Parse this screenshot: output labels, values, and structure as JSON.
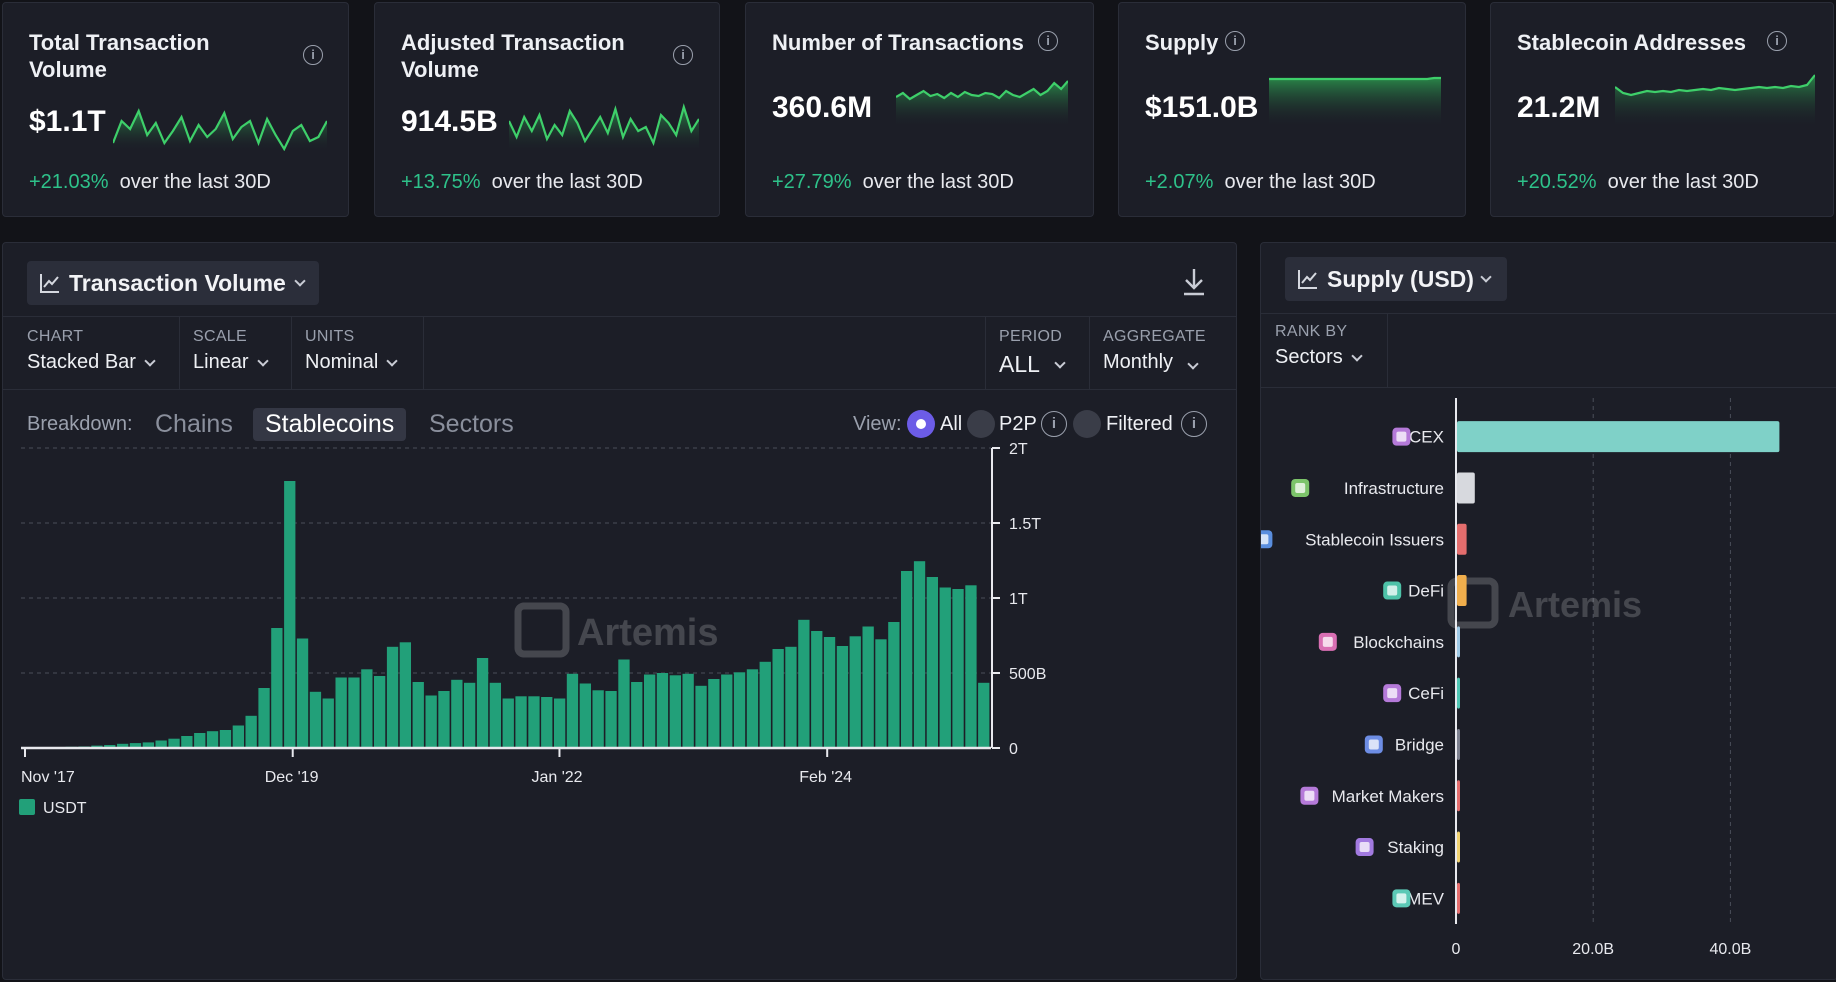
{
  "cards": [
    {
      "title_line1": "Total Transaction",
      "title_line2": "Volume",
      "value": "$1.1T",
      "change": "+21.03%",
      "change_suffix": "over the last 30D"
    },
    {
      "title_line1": "Adjusted Transaction",
      "title_line2": "Volume",
      "value": "914.5B",
      "change": "+13.75%",
      "change_suffix": "over the last 30D"
    },
    {
      "title_line1": "Number of Transactions",
      "title_line2": "",
      "value": "360.6M",
      "change": "+27.79%",
      "change_suffix": "over the last 30D"
    },
    {
      "title_line1": "Supply",
      "title_line2": "",
      "value": "$151.0B",
      "change": "+2.07%",
      "change_suffix": "over the last 30D"
    },
    {
      "title_line1": "Stablecoin Addresses",
      "title_line2": "",
      "value": "21.2M",
      "change": "+20.52%",
      "change_suffix": "over the last 30D"
    }
  ],
  "sparklines": [
    [
      52,
      30,
      38,
      20,
      44,
      32,
      52,
      40,
      26,
      50,
      34,
      46,
      38,
      22,
      48,
      36,
      30,
      52,
      28,
      44,
      58,
      40,
      34,
      50,
      46,
      30
    ],
    [
      34,
      50,
      30,
      44,
      28,
      52,
      38,
      48,
      24,
      36,
      54,
      42,
      30,
      46,
      22,
      50,
      32,
      44,
      40,
      56,
      28,
      36,
      48,
      20,
      44,
      32
    ],
    [
      26,
      22,
      28,
      24,
      20,
      25,
      23,
      27,
      22,
      26,
      21,
      24,
      25,
      22,
      23,
      27,
      20,
      24,
      26,
      22,
      18,
      24,
      20,
      12,
      18,
      10
    ],
    [
      12,
      12,
      12,
      12,
      12,
      12,
      12,
      12,
      12,
      12,
      12,
      12,
      12,
      12,
      12,
      12,
      12,
      12,
      12,
      12,
      12,
      12,
      12,
      12,
      11,
      11
    ],
    [
      16,
      22,
      24,
      22,
      20,
      21,
      20,
      21,
      19,
      20,
      19,
      18,
      19,
      17,
      18,
      19,
      18,
      17,
      16,
      17,
      16,
      17,
      15,
      16,
      14,
      4
    ]
  ],
  "main_panel": {
    "title": "Transaction Volume",
    "controls": {
      "chart_label": "CHART",
      "chart_value": "Stacked Bar",
      "scale_label": "SCALE",
      "scale_value": "Linear",
      "units_label": "UNITS",
      "units_value": "Nominal",
      "period_label": "PERIOD",
      "period_value": "ALL",
      "aggregate_label": "AGGREGATE",
      "aggregate_value": "Monthly"
    },
    "breakdown_label": "Breakdown:",
    "tabs": [
      "Chains",
      "Stablecoins",
      "Sectors"
    ],
    "active_tab": "Stablecoins",
    "view_label": "View:",
    "view_options": [
      "All",
      "P2P",
      "Filtered"
    ],
    "view_selected": "All",
    "watermark": "Artemis"
  },
  "side_panel": {
    "title": "Supply (USD)",
    "rank_by_label": "RANK BY",
    "rank_by_value": "Sectors",
    "watermark": "Artemis"
  },
  "chart_data": [
    {
      "type": "bar",
      "title": "Transaction Volume",
      "stacked": true,
      "x_tick_labels": [
        "Nov '17",
        "Dec '19",
        "Jan '22",
        "Feb '24"
      ],
      "y_tick_labels": [
        "0",
        "500B",
        "1T",
        "1.5T",
        "2T"
      ],
      "ylim": [
        0,
        2000
      ],
      "y_unit": "B",
      "series": [
        {
          "name": "USDT",
          "color": "#22a079",
          "values": [
            2,
            4,
            6,
            8,
            10,
            16,
            20,
            28,
            33,
            37,
            50,
            62,
            80,
            100,
            112,
            120,
            150,
            215,
            400,
            800,
            1780,
            730,
            375,
            330,
            470,
            470,
            525,
            480,
            675,
            705,
            440,
            350,
            380,
            455,
            435,
            600,
            435,
            330,
            345,
            345,
            340,
            330,
            495,
            430,
            385,
            380,
            590,
            440,
            490,
            500,
            485,
            495,
            415,
            460,
            490,
            505,
            525,
            575,
            660,
            675,
            855,
            780,
            740,
            680,
            745,
            810,
            725,
            840,
            1180,
            1245,
            1140,
            1070,
            1060,
            1085,
            435
          ]
        }
      ],
      "legend": [
        "USDT"
      ],
      "legend_position": "bottom-left",
      "grid": true
    },
    {
      "type": "bar",
      "orientation": "horizontal",
      "title": "Supply (USD)",
      "categories": [
        "CEX",
        "Infrastructure",
        "Stablecoin Issuers",
        "DeFi",
        "Blockchains",
        "CeFi",
        "Bridge",
        "Market Makers",
        "Staking",
        "MEV"
      ],
      "values": [
        47.0,
        2.6,
        1.4,
        1.4,
        0.1,
        0.3,
        0.3,
        0.3,
        0.4,
        0.3
      ],
      "colors": [
        "#7fd1c8",
        "#d7d9de",
        "#e46d6d",
        "#f0ae4c",
        "#9ec9e6",
        "#4fc6b4",
        "#7d8190",
        "#e46d6d",
        "#f0d270",
        "#e46d6d"
      ],
      "icon_colors": [
        "#b57ad9",
        "#7cc46a",
        "#5a8ede",
        "#4ec2a8",
        "#d96fb3",
        "#b57ad9",
        "#6d8de4",
        "#b57ad9",
        "#a27ae0",
        "#5cc9b6"
      ],
      "x_tick_labels": [
        "0",
        "20.0B",
        "40.0B"
      ],
      "xlim": [
        0,
        50
      ],
      "x_unit": "B",
      "grid": true
    }
  ]
}
